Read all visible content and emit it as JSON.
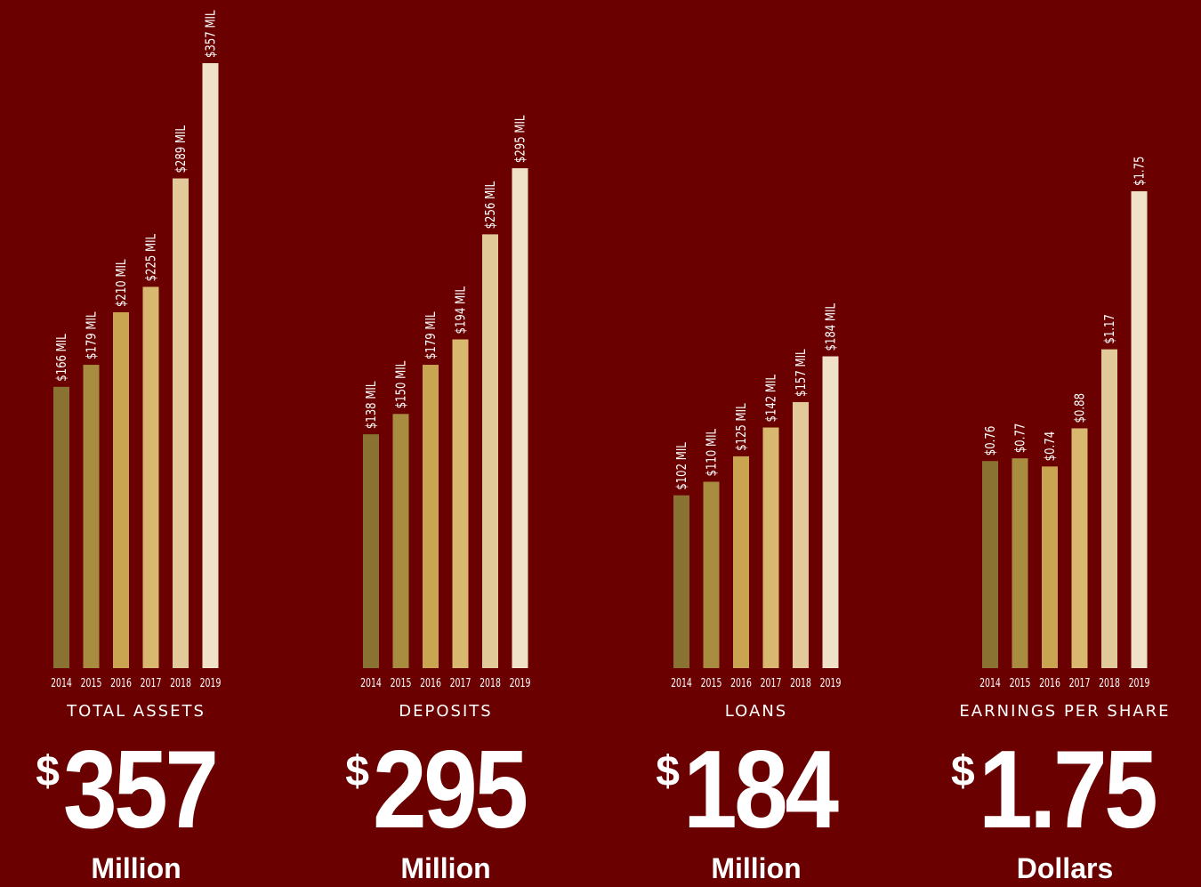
{
  "colors": {
    "background": "#6a0000",
    "text": "#ffffff",
    "bars": [
      "#8a7233",
      "#a88c3f",
      "#c9a552",
      "#d7b86e",
      "#e2c999",
      "#efe2c8"
    ]
  },
  "chart_data": [
    {
      "type": "bar",
      "title": "TOTAL ASSETS",
      "categories": [
        "2014",
        "2015",
        "2016",
        "2017",
        "2018",
        "2019"
      ],
      "values": [
        166,
        179,
        210,
        225,
        289,
        357
      ],
      "data_labels": [
        "$166 MIL",
        "$179 MIL",
        "$210 MIL",
        "$225 MIL",
        "$289 MIL",
        "$357 MIL"
      ],
      "headline": {
        "currency": "$",
        "value": "357",
        "unit": "Million"
      },
      "ylim": [
        0,
        357
      ]
    },
    {
      "type": "bar",
      "title": "DEPOSITS",
      "categories": [
        "2014",
        "2015",
        "2016",
        "2017",
        "2018",
        "2019"
      ],
      "values": [
        138,
        150,
        179,
        194,
        256,
        295
      ],
      "data_labels": [
        "$138 MIL",
        "$150 MIL",
        "$179 MIL",
        "$194 MIL",
        "$256 MIL",
        "$295 MIL"
      ],
      "headline": {
        "currency": "$",
        "value": "295",
        "unit": "Million"
      },
      "ylim": [
        0,
        357
      ]
    },
    {
      "type": "bar",
      "title": "LOANS",
      "categories": [
        "2014",
        "2015",
        "2016",
        "2017",
        "2018",
        "2019"
      ],
      "values": [
        102,
        110,
        125,
        142,
        157,
        184
      ],
      "data_labels": [
        "$102 MIL",
        "$110 MIL",
        "$125 MIL",
        "$142 MIL",
        "$157 MIL",
        "$184 MIL"
      ],
      "headline": {
        "currency": "$",
        "value": "184",
        "unit": "Million"
      },
      "ylim": [
        0,
        357
      ]
    },
    {
      "type": "bar",
      "title": "EARNINGS PER SHARE",
      "categories": [
        "2014",
        "2015",
        "2016",
        "2017",
        "2018",
        "2019"
      ],
      "values": [
        0.76,
        0.77,
        0.74,
        0.88,
        1.17,
        1.75
      ],
      "data_labels": [
        "$0.76",
        "$0.77",
        "$0.74",
        "$0.88",
        "$1.17",
        "$1.75"
      ],
      "headline": {
        "currency": "$",
        "value": "1.75",
        "unit": "Dollars"
      },
      "ylim": [
        0,
        2.22
      ]
    }
  ]
}
